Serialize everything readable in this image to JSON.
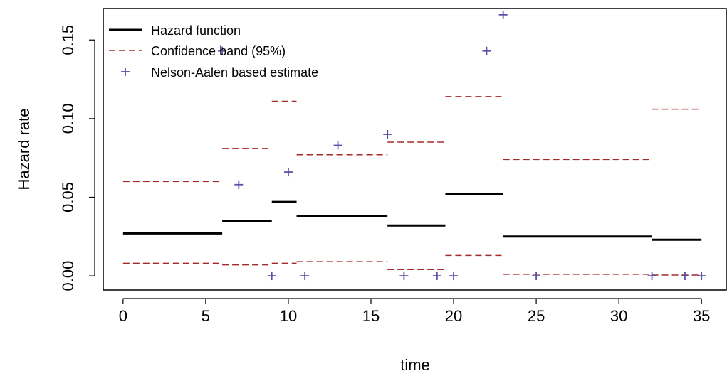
{
  "chart_data": {
    "type": "line",
    "title": "",
    "xlabel": "time",
    "ylabel": "Hazard rate",
    "xlim": [
      -1.2,
      36.5
    ],
    "ylim": [
      -0.009,
      0.17
    ],
    "x_ticks": [
      0,
      5,
      10,
      15,
      20,
      25,
      30,
      35
    ],
    "x_tick_labels": [
      "0",
      "5",
      "10",
      "15",
      "20",
      "25",
      "30",
      "35"
    ],
    "y_ticks": [
      0.0,
      0.05,
      0.1,
      0.15
    ],
    "y_tick_labels": [
      "0.00",
      "0.05",
      "0.10",
      "0.15"
    ],
    "grid": false,
    "legend_position": "top-left",
    "legend": [
      {
        "label": "Hazard function",
        "style": "solid-line",
        "color": "#000000"
      },
      {
        "label": "Confidence band (95%)",
        "style": "dashed-line",
        "color": "#a52a2a"
      },
      {
        "label": "Nelson-Aalen based estimate",
        "style": "plus-marker",
        "color": "#5b52a8"
      }
    ],
    "hazard_function": [
      {
        "x0": 0,
        "x1": 6,
        "y": 0.027
      },
      {
        "x0": 6,
        "x1": 9,
        "y": 0.035
      },
      {
        "x0": 9,
        "x1": 10.5,
        "y": 0.047
      },
      {
        "x0": 10.5,
        "x1": 16,
        "y": 0.038
      },
      {
        "x0": 16,
        "x1": 19.5,
        "y": 0.032
      },
      {
        "x0": 19.5,
        "x1": 23,
        "y": 0.052
      },
      {
        "x0": 23,
        "x1": 32,
        "y": 0.025
      },
      {
        "x0": 32,
        "x1": 35,
        "y": 0.023
      }
    ],
    "confidence_upper": [
      {
        "x0": 0,
        "x1": 6,
        "y": 0.06
      },
      {
        "x0": 6,
        "x1": 9,
        "y": 0.081
      },
      {
        "x0": 9,
        "x1": 10.5,
        "y": 0.111
      },
      {
        "x0": 10.5,
        "x1": 16,
        "y": 0.077
      },
      {
        "x0": 16,
        "x1": 19.5,
        "y": 0.085
      },
      {
        "x0": 19.5,
        "x1": 23,
        "y": 0.114
      },
      {
        "x0": 23,
        "x1": 32,
        "y": 0.074
      },
      {
        "x0": 32,
        "x1": 35,
        "y": 0.106
      }
    ],
    "confidence_lower": [
      {
        "x0": 0,
        "x1": 6,
        "y": 0.008
      },
      {
        "x0": 6,
        "x1": 9,
        "y": 0.007
      },
      {
        "x0": 9,
        "x1": 10.5,
        "y": 0.008
      },
      {
        "x0": 10.5,
        "x1": 16,
        "y": 0.009
      },
      {
        "x0": 16,
        "x1": 19.5,
        "y": 0.004
      },
      {
        "x0": 19.5,
        "x1": 23,
        "y": 0.013
      },
      {
        "x0": 23,
        "x1": 32,
        "y": 0.001
      },
      {
        "x0": 32,
        "x1": 35,
        "y": 0.0005
      }
    ],
    "nelson_aalen": [
      {
        "x": 6,
        "y": 0.143
      },
      {
        "x": 7,
        "y": 0.058
      },
      {
        "x": 9,
        "y": 0.0
      },
      {
        "x": 10,
        "y": 0.066
      },
      {
        "x": 11,
        "y": 0.0
      },
      {
        "x": 13,
        "y": 0.083
      },
      {
        "x": 16,
        "y": 0.09
      },
      {
        "x": 17,
        "y": 0.0
      },
      {
        "x": 19,
        "y": 0.0
      },
      {
        "x": 20,
        "y": 0.0
      },
      {
        "x": 22,
        "y": 0.143
      },
      {
        "x": 23,
        "y": 0.166
      },
      {
        "x": 25,
        "y": 0.0
      },
      {
        "x": 32,
        "y": 0.0
      },
      {
        "x": 34,
        "y": 0.0
      },
      {
        "x": 35,
        "y": 0.0
      }
    ],
    "colors": {
      "hazard": "#000000",
      "confidence": "#a52a2a",
      "nelson_aalen": "#5b52a8",
      "axis": "#000000"
    }
  }
}
